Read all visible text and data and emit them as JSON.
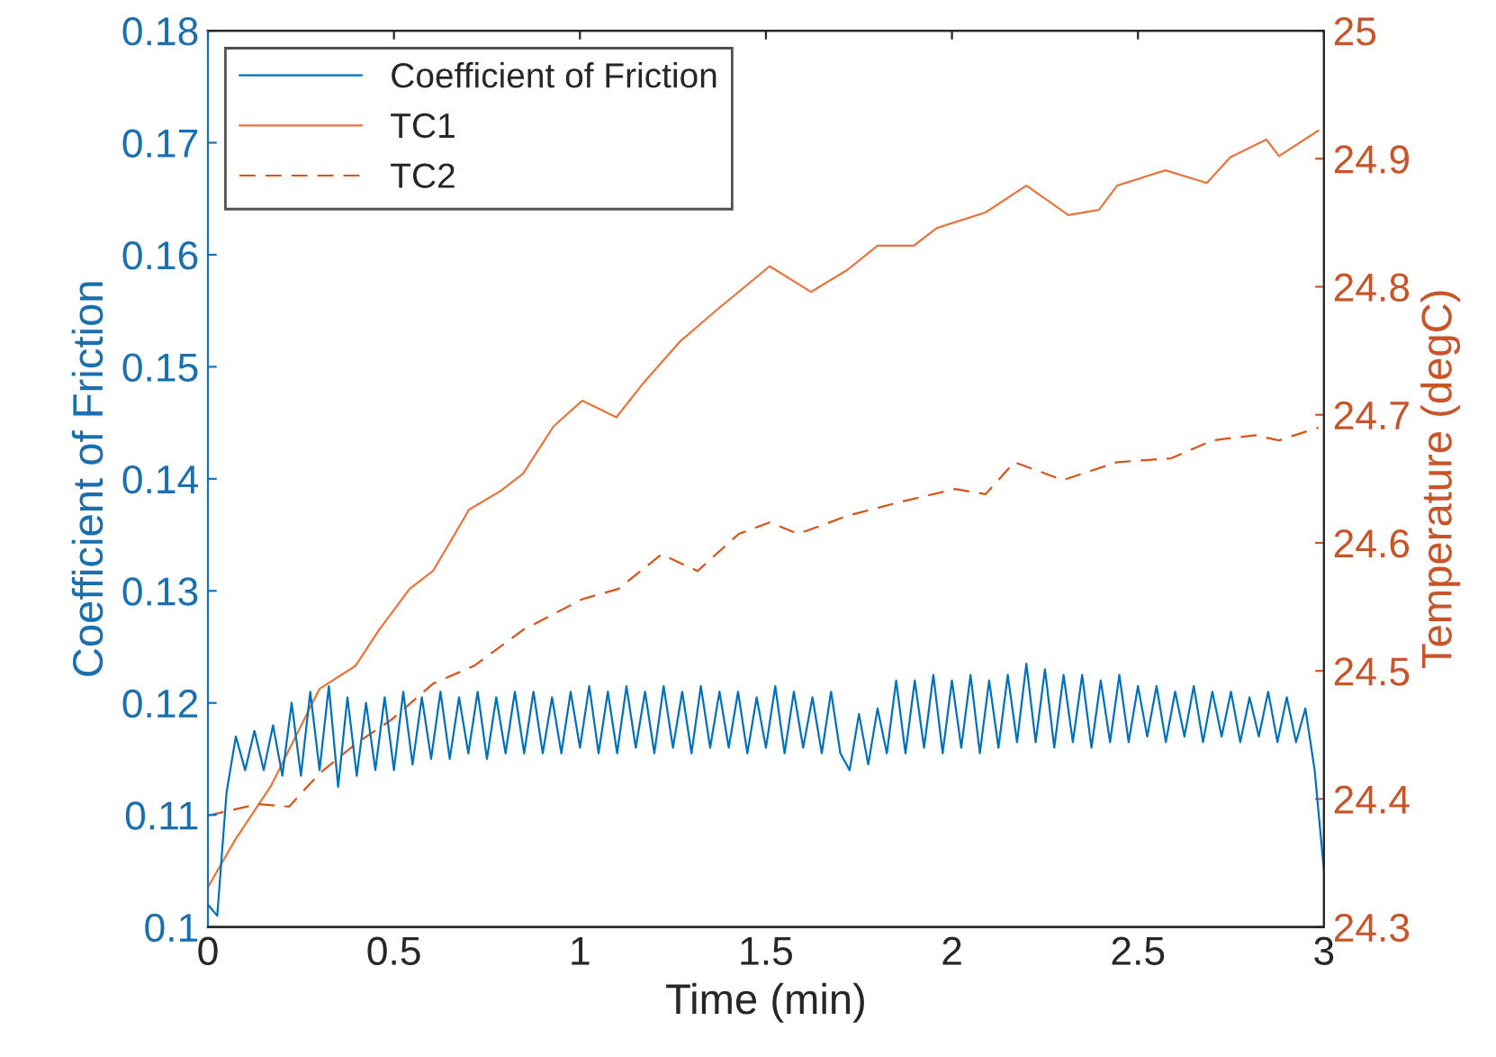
{
  "chart_data": {
    "type": "line",
    "xlabel": "Time (min)",
    "ylabel": "Coefficient of Friction",
    "y2label": "Temperature (degC)",
    "xlim": [
      0,
      3
    ],
    "xticks": [
      0,
      0.5,
      1,
      1.5,
      2,
      2.5,
      3
    ],
    "ylim": [
      0.1,
      0.18
    ],
    "yticks": [
      0.1,
      0.11,
      0.12,
      0.13,
      0.14,
      0.15,
      0.16,
      0.17,
      0.18
    ],
    "y2lim": [
      24.3,
      25
    ],
    "y2ticks": [
      24.3,
      24.4,
      24.5,
      24.6,
      24.7,
      24.8,
      24.9,
      25
    ],
    "legend": "top left",
    "grid": false,
    "series": [
      {
        "name": "Coefficient of Friction",
        "color": "#0072bd",
        "line_style": "solid",
        "axis": "y",
        "x": [
          0,
          0.025,
          0.05,
          0.075,
          0.1,
          0.125,
          0.15,
          0.175,
          0.2,
          0.225,
          0.25,
          0.275,
          0.3,
          0.325,
          0.35,
          0.375,
          0.4,
          0.425,
          0.45,
          0.475,
          0.5,
          0.525,
          0.55,
          0.575,
          0.6,
          0.625,
          0.65,
          0.675,
          0.7,
          0.725,
          0.75,
          0.775,
          0.8,
          0.825,
          0.85,
          0.875,
          0.9,
          0.925,
          0.95,
          0.975,
          1,
          1.025,
          1.05,
          1.075,
          1.1,
          1.125,
          1.15,
          1.175,
          1.2,
          1.225,
          1.25,
          1.275,
          1.3,
          1.325,
          1.35,
          1.375,
          1.4,
          1.425,
          1.45,
          1.475,
          1.5,
          1.525,
          1.55,
          1.575,
          1.6,
          1.625,
          1.65,
          1.675,
          1.7,
          1.725,
          1.75,
          1.775,
          1.8,
          1.825,
          1.85,
          1.875,
          1.9,
          1.925,
          1.95,
          1.975,
          2,
          2.025,
          2.05,
          2.075,
          2.1,
          2.125,
          2.15,
          2.175,
          2.2,
          2.225,
          2.25,
          2.275,
          2.3,
          2.325,
          2.35,
          2.375,
          2.4,
          2.425,
          2.45,
          2.475,
          2.5,
          2.525,
          2.55,
          2.575,
          2.6,
          2.625,
          2.65,
          2.675,
          2.7,
          2.725,
          2.75,
          2.775,
          2.8,
          2.825,
          2.85,
          2.875,
          2.9,
          2.925,
          2.95,
          2.975,
          3
        ],
        "values": [
          0.102,
          0.101,
          0.112,
          0.117,
          0.114,
          0.1175,
          0.114,
          0.118,
          0.1135,
          0.12,
          0.1135,
          0.121,
          0.114,
          0.1215,
          0.1125,
          0.1205,
          0.1135,
          0.12,
          0.114,
          0.1205,
          0.114,
          0.121,
          0.1145,
          0.1205,
          0.115,
          0.121,
          0.115,
          0.1205,
          0.1155,
          0.121,
          0.115,
          0.1205,
          0.1155,
          0.121,
          0.1155,
          0.121,
          0.1155,
          0.1205,
          0.1155,
          0.121,
          0.116,
          0.1215,
          0.1155,
          0.121,
          0.1155,
          0.1215,
          0.116,
          0.121,
          0.1155,
          0.1215,
          0.116,
          0.121,
          0.1155,
          0.1215,
          0.116,
          0.121,
          0.116,
          0.121,
          0.1155,
          0.1205,
          0.116,
          0.1215,
          0.1155,
          0.121,
          0.116,
          0.1205,
          0.1155,
          0.121,
          0.1155,
          0.114,
          0.119,
          0.1145,
          0.1195,
          0.1155,
          0.122,
          0.1155,
          0.122,
          0.116,
          0.1225,
          0.1155,
          0.122,
          0.116,
          0.1225,
          0.1155,
          0.122,
          0.116,
          0.1225,
          0.1165,
          0.1235,
          0.1165,
          0.123,
          0.116,
          0.1225,
          0.1165,
          0.1225,
          0.116,
          0.122,
          0.1165,
          0.1225,
          0.1165,
          0.1215,
          0.117,
          0.1215,
          0.1165,
          0.121,
          0.117,
          0.1215,
          0.1165,
          0.121,
          0.117,
          0.121,
          0.1165,
          0.1205,
          0.117,
          0.121,
          0.1165,
          0.1205,
          0.1165,
          0.1195,
          0.114,
          0.105
        ]
      },
      {
        "name": "TC1",
        "color": "#e8743b",
        "line_style": "solid",
        "axis": "y2",
        "x": [
          0,
          0.073,
          0.169,
          0.3,
          0.397,
          0.46,
          0.542,
          0.605,
          0.702,
          0.784,
          0.847,
          0.929,
          1.006,
          1.098,
          1.171,
          1.268,
          1.364,
          1.51,
          1.621,
          1.718,
          1.8,
          1.897,
          1.96,
          2.09,
          2.2,
          2.313,
          2.395,
          2.444,
          2.574,
          2.685,
          2.748,
          2.845,
          2.879,
          2.985
        ],
        "values": [
          24.331,
          24.368,
          24.41,
          24.486,
          24.504,
          24.532,
          24.564,
          24.578,
          24.626,
          24.64,
          24.654,
          24.691,
          24.711,
          24.698,
          24.725,
          24.757,
          24.781,
          24.816,
          24.796,
          24.813,
          24.832,
          24.832,
          24.846,
          24.858,
          24.879,
          24.856,
          24.86,
          24.879,
          24.891,
          24.881,
          24.901,
          24.915,
          24.902,
          24.922
        ]
      },
      {
        "name": "TC2",
        "color": "#d95319",
        "line_style": "dashed",
        "axis": "y2",
        "x": [
          0,
          0.135,
          0.218,
          0.3,
          0.397,
          0.494,
          0.605,
          0.716,
          0.847,
          1.006,
          1.103,
          1.219,
          1.316,
          1.427,
          1.51,
          1.587,
          1.718,
          1.848,
          2.008,
          2.09,
          2.168,
          2.298,
          2.444,
          2.589,
          2.7,
          2.816,
          2.879,
          2.985
        ],
        "values": [
          24.387,
          24.396,
          24.394,
          24.42,
          24.443,
          24.462,
          24.49,
          24.504,
          24.532,
          24.556,
          24.564,
          24.591,
          24.578,
          24.607,
          24.616,
          24.607,
          24.621,
          24.631,
          24.642,
          24.638,
          24.663,
          24.649,
          24.663,
          24.666,
          24.68,
          24.684,
          24.68,
          24.69
        ]
      }
    ]
  }
}
